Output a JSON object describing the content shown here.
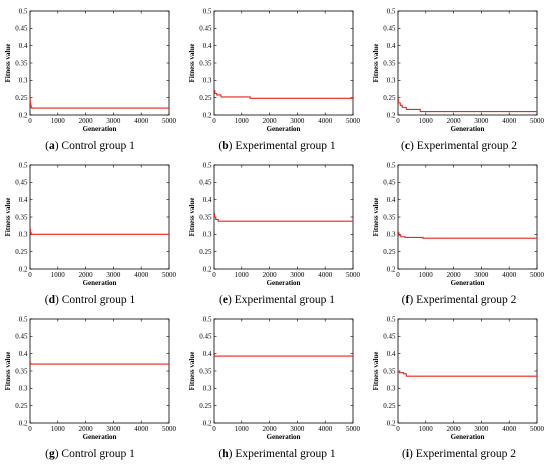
{
  "figure": {
    "line_color": "#e8261c",
    "axis_color": "#000000"
  },
  "chart_data": [
    {
      "type": "line",
      "caption_letter": "(a)",
      "caption_text": "Control group 1",
      "xlabel": "Generation",
      "ylabel": "Fitness value",
      "xlim": [
        0,
        5000
      ],
      "ylim": [
        0.2,
        0.5
      ],
      "xticks": [
        "0",
        "1000",
        "2000",
        "3000",
        "4000",
        "5000"
      ],
      "yticks": [
        "0.2",
        "0.25",
        "0.3",
        "0.35",
        "0.4",
        "0.45",
        "0.5"
      ],
      "series": [
        {
          "x": [
            0,
            10,
            20,
            40,
            60,
            5000
          ],
          "y": [
            0.25,
            0.235,
            0.228,
            0.222,
            0.22,
            0.22
          ]
        }
      ]
    },
    {
      "type": "line",
      "caption_letter": "(b)",
      "caption_text": "Experimental group 1",
      "xlabel": "Generation",
      "ylabel": "Fitness value",
      "xlim": [
        0,
        5000
      ],
      "ylim": [
        0.2,
        0.5
      ],
      "xticks": [
        "0",
        "1000",
        "2000",
        "3000",
        "4000",
        "5000"
      ],
      "yticks": [
        "0.2",
        "0.25",
        "0.3",
        "0.35",
        "0.4",
        "0.45",
        "0.5"
      ],
      "series": [
        {
          "x": [
            0,
            30,
            100,
            250,
            1300,
            5000
          ],
          "y": [
            0.27,
            0.262,
            0.258,
            0.252,
            0.248,
            0.248
          ]
        }
      ]
    },
    {
      "type": "line",
      "caption_letter": "(c)",
      "caption_text": "Experimental group 2",
      "xlabel": "Generation",
      "ylabel": "Fitness value",
      "xlim": [
        0,
        5000
      ],
      "ylim": [
        0.2,
        0.5
      ],
      "xticks": [
        "0",
        "1000",
        "2000",
        "3000",
        "4000",
        "5000"
      ],
      "yticks": [
        "0.2",
        "0.25",
        "0.3",
        "0.35",
        "0.4",
        "0.45",
        "0.5"
      ],
      "series": [
        {
          "x": [
            0,
            20,
            80,
            150,
            300,
            800,
            5000
          ],
          "y": [
            0.245,
            0.235,
            0.228,
            0.222,
            0.216,
            0.21,
            0.21
          ]
        }
      ]
    },
    {
      "type": "line",
      "caption_letter": "(d)",
      "caption_text": "Control group 1",
      "xlabel": "Generation",
      "ylabel": "Fitness value",
      "xlim": [
        0,
        5000
      ],
      "ylim": [
        0.2,
        0.5
      ],
      "xticks": [
        "0",
        "1000",
        "2000",
        "3000",
        "4000",
        "5000"
      ],
      "yticks": [
        "0.2",
        "0.25",
        "0.3",
        "0.35",
        "0.4",
        "0.45",
        "0.5"
      ],
      "series": [
        {
          "x": [
            0,
            15,
            40,
            5000
          ],
          "y": [
            0.315,
            0.305,
            0.3,
            0.3
          ]
        }
      ]
    },
    {
      "type": "line",
      "caption_letter": "(e)",
      "caption_text": "Experimental group 1",
      "xlabel": "Generation",
      "ylabel": "Fitness value",
      "xlim": [
        0,
        5000
      ],
      "ylim": [
        0.2,
        0.5
      ],
      "xticks": [
        "0",
        "1000",
        "2000",
        "3000",
        "4000",
        "5000"
      ],
      "yticks": [
        "0.2",
        "0.25",
        "0.3",
        "0.35",
        "0.4",
        "0.45",
        "0.5"
      ],
      "series": [
        {
          "x": [
            0,
            20,
            60,
            150,
            5000
          ],
          "y": [
            0.36,
            0.35,
            0.343,
            0.338,
            0.338
          ]
        }
      ]
    },
    {
      "type": "line",
      "caption_letter": "(f)",
      "caption_text": "Experimental group 2",
      "xlabel": "Generation",
      "ylabel": "Fitness value",
      "xlim": [
        0,
        5000
      ],
      "ylim": [
        0.2,
        0.5
      ],
      "xticks": [
        "0",
        "1000",
        "2000",
        "3000",
        "4000",
        "5000"
      ],
      "yticks": [
        "0.2",
        "0.25",
        "0.3",
        "0.35",
        "0.4",
        "0.45",
        "0.5"
      ],
      "series": [
        {
          "x": [
            0,
            30,
            100,
            250,
            900,
            5000
          ],
          "y": [
            0.305,
            0.298,
            0.293,
            0.291,
            0.289,
            0.289
          ]
        }
      ]
    },
    {
      "type": "line",
      "caption_letter": "(g)",
      "caption_text": "Control group 1",
      "xlabel": "Generation",
      "ylabel": "Fitness value",
      "xlim": [
        0,
        5000
      ],
      "ylim": [
        0.2,
        0.5
      ],
      "xticks": [
        "0",
        "1000",
        "2000",
        "3000",
        "4000",
        "5000"
      ],
      "yticks": [
        "0.2",
        "0.25",
        "0.3",
        "0.35",
        "0.4",
        "0.45",
        "0.5"
      ],
      "series": [
        {
          "x": [
            0,
            10,
            25,
            5000
          ],
          "y": [
            0.375,
            0.372,
            0.37,
            0.37
          ]
        }
      ]
    },
    {
      "type": "line",
      "caption_letter": "(h)",
      "caption_text": "Experimental group 1",
      "xlabel": "Generation",
      "ylabel": "Fitness value",
      "xlim": [
        0,
        5000
      ],
      "ylim": [
        0.2,
        0.5
      ],
      "xticks": [
        "0",
        "1000",
        "2000",
        "3000",
        "4000",
        "5000"
      ],
      "yticks": [
        "0.2",
        "0.25",
        "0.3",
        "0.35",
        "0.4",
        "0.45",
        "0.5"
      ],
      "series": [
        {
          "x": [
            0,
            15,
            5000
          ],
          "y": [
            0.397,
            0.393,
            0.393
          ]
        }
      ]
    },
    {
      "type": "line",
      "caption_letter": "(i)",
      "caption_text": "Experimental group 2",
      "xlabel": "Generation",
      "ylabel": "Fitness value",
      "xlim": [
        0,
        5000
      ],
      "ylim": [
        0.2,
        0.5
      ],
      "xticks": [
        "0",
        "1000",
        "2000",
        "3000",
        "4000",
        "5000"
      ],
      "yticks": [
        "0.2",
        "0.25",
        "0.3",
        "0.35",
        "0.4",
        "0.45",
        "0.5"
      ],
      "series": [
        {
          "x": [
            0,
            50,
            200,
            300,
            5000
          ],
          "y": [
            0.35,
            0.345,
            0.342,
            0.335,
            0.335
          ]
        }
      ]
    }
  ]
}
